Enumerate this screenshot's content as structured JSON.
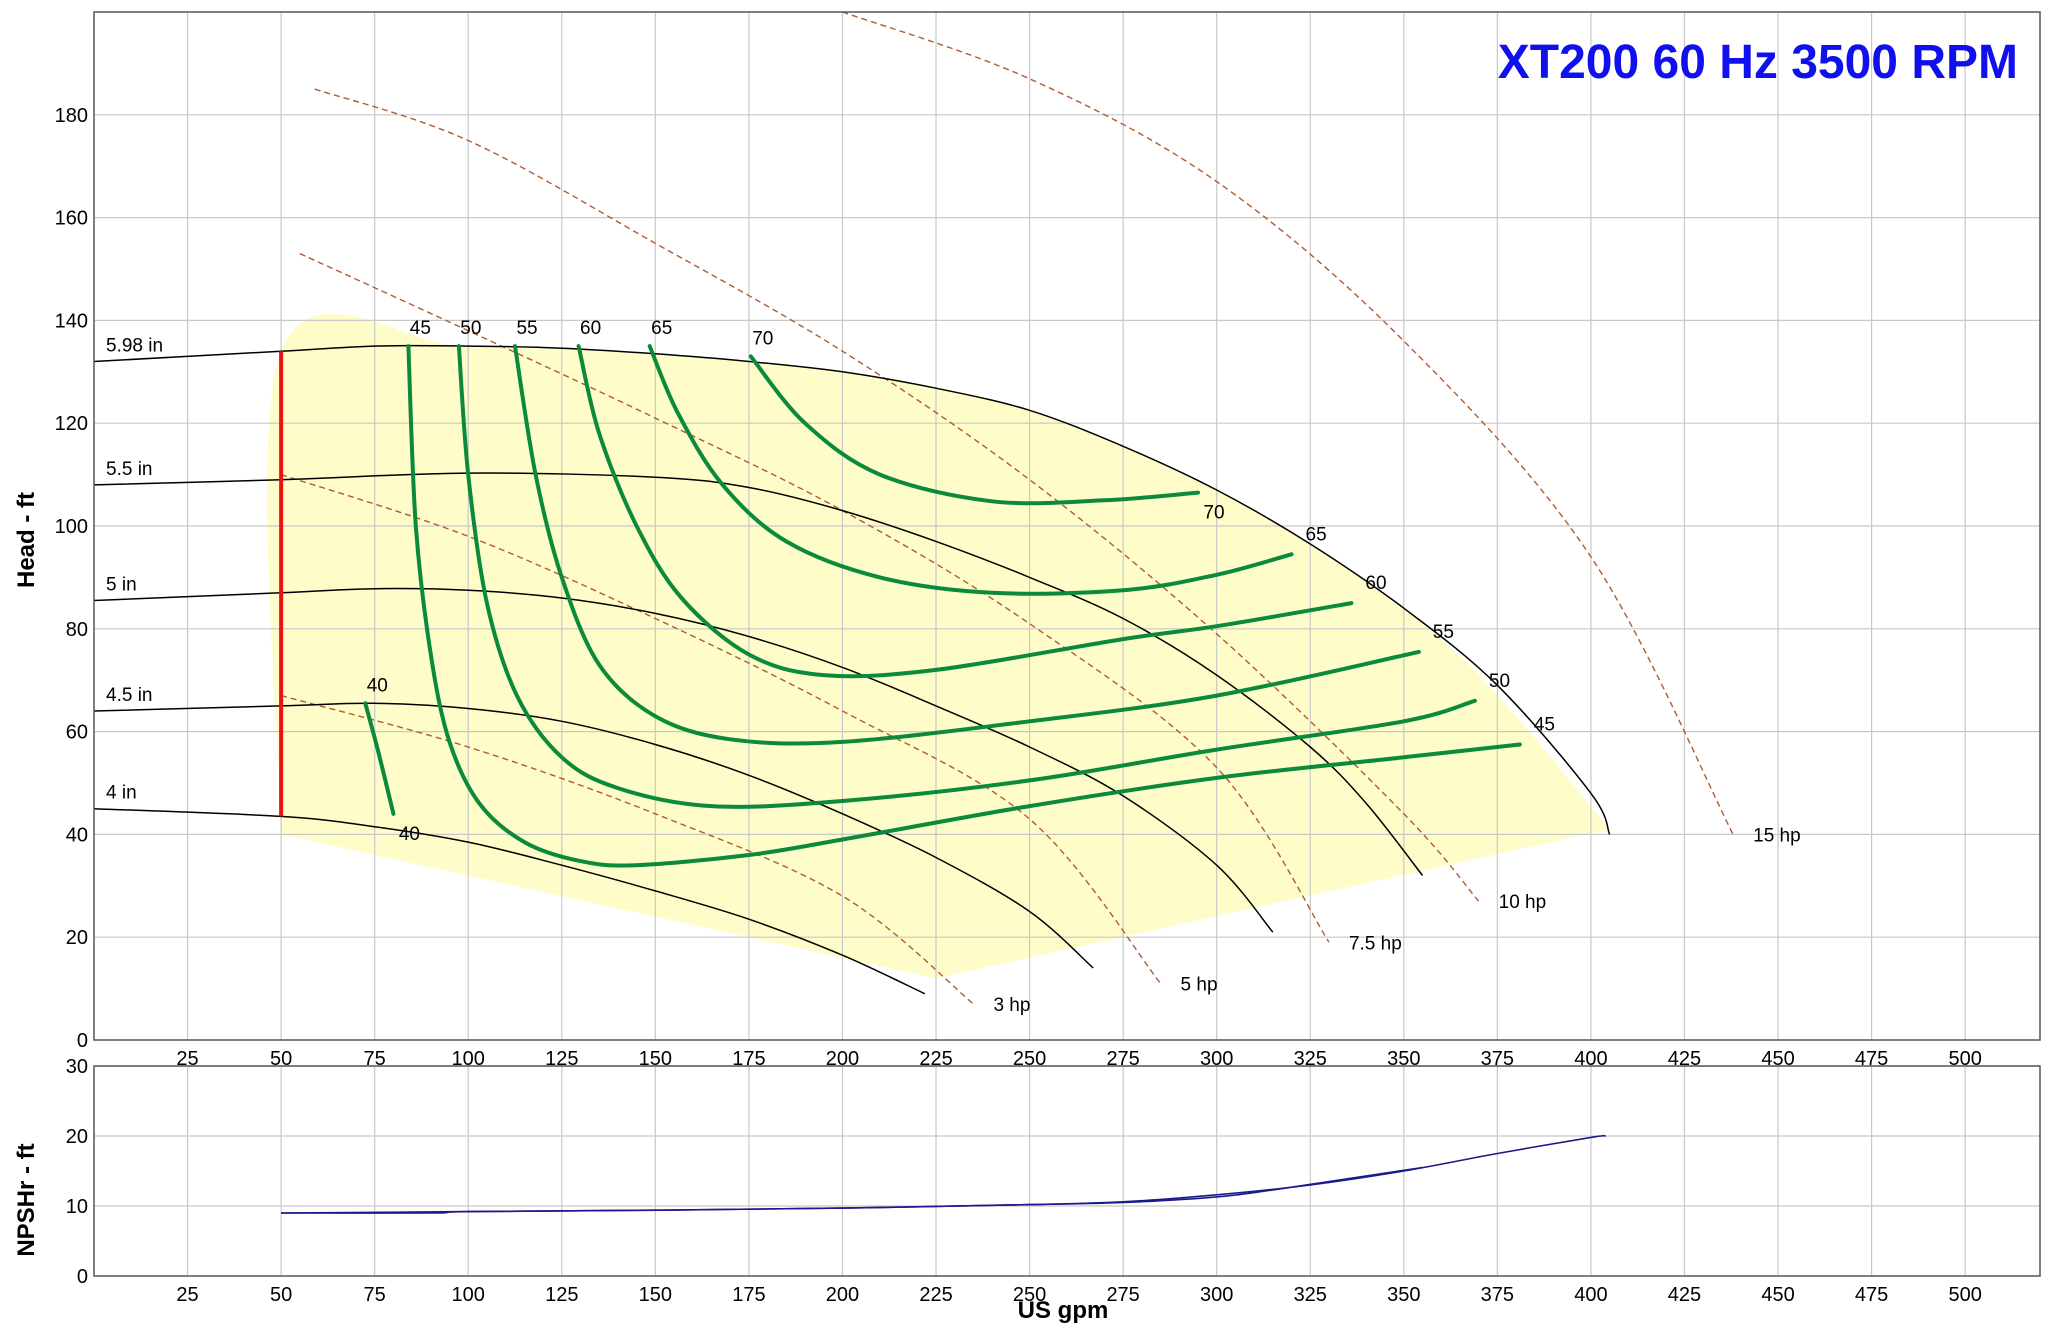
{
  "chart_data": [
    {
      "panel": "head",
      "type": "line",
      "title": "XT200 60 Hz 3500 RPM",
      "title_color": "#1010ee",
      "ylabel": "Head - ft",
      "xlim": [
        0,
        520
      ],
      "ylim": [
        0,
        200
      ],
      "x_ticks": [
        25,
        50,
        75,
        100,
        125,
        150,
        175,
        200,
        225,
        250,
        275,
        300,
        325,
        350,
        375,
        400,
        425,
        450,
        475,
        500
      ],
      "y_ticks": [
        0,
        20,
        40,
        60,
        80,
        100,
        120,
        140,
        160,
        180
      ],
      "grid": true,
      "colors": {
        "impeller": "#000000",
        "efficiency": "#0a8a3a",
        "power": "#b05c32",
        "min_flow": "#ee1111",
        "region_fill": "#fefcc8",
        "grid": "#c8c8c8"
      },
      "operating_region": [
        [
          50,
          40
        ],
        [
          50,
          134
        ],
        [
          100,
          134.8
        ],
        [
          150,
          133.5
        ],
        [
          200,
          130
        ],
        [
          250,
          122.5
        ],
        [
          300,
          107
        ],
        [
          330,
          94
        ],
        [
          360,
          78
        ],
        [
          380,
          63
        ],
        [
          405,
          41
        ],
        [
          225,
          12
        ],
        [
          50,
          40
        ]
      ],
      "min_flow_line": {
        "x": 50,
        "y": [
          43.5,
          134
        ]
      },
      "impeller_curves": [
        {
          "label": "5.98 in",
          "points": [
            [
              0,
              132
            ],
            [
              50,
              134
            ],
            [
              75,
              135
            ],
            [
              100,
              135
            ],
            [
              125,
              134.6
            ],
            [
              150,
              133.5
            ],
            [
              175,
              132
            ],
            [
              200,
              130
            ],
            [
              225,
              126.8
            ],
            [
              250,
              122.5
            ],
            [
              275,
              115.5
            ],
            [
              300,
              107
            ],
            [
              325,
              96.5
            ],
            [
              350,
              84
            ],
            [
              375,
              69
            ],
            [
              400,
              48
            ],
            [
              405,
              40
            ]
          ]
        },
        {
          "label": "5.5 in",
          "points": [
            [
              0,
              108
            ],
            [
              50,
              109
            ],
            [
              100,
              110.3
            ],
            [
              150,
              109.5
            ],
            [
              175,
              107.5
            ],
            [
              200,
              103
            ],
            [
              225,
              97
            ],
            [
              250,
              90
            ],
            [
              275,
              82
            ],
            [
              300,
              71
            ],
            [
              325,
              57
            ],
            [
              340,
              46
            ],
            [
              355,
              32
            ]
          ]
        },
        {
          "label": "5 in",
          "points": [
            [
              0,
              85.5
            ],
            [
              50,
              87
            ],
            [
              75,
              87.8
            ],
            [
              100,
              87.5
            ],
            [
              125,
              86
            ],
            [
              150,
              83
            ],
            [
              175,
              78.5
            ],
            [
              200,
              72.5
            ],
            [
              225,
              65
            ],
            [
              250,
              57
            ],
            [
              275,
              47.5
            ],
            [
              300,
              34
            ],
            [
              315,
              21
            ]
          ]
        },
        {
          "label": "4.5 in",
          "points": [
            [
              0,
              64
            ],
            [
              50,
              65
            ],
            [
              75,
              65.5
            ],
            [
              100,
              64.5
            ],
            [
              125,
              62
            ],
            [
              150,
              57.5
            ],
            [
              175,
              51.5
            ],
            [
              200,
              44
            ],
            [
              225,
              35.5
            ],
            [
              250,
              25
            ],
            [
              267,
              14
            ]
          ]
        },
        {
          "label": "4 in",
          "points": [
            [
              0,
              45
            ],
            [
              50,
              43.5
            ],
            [
              75,
              41.5
            ],
            [
              100,
              38.5
            ],
            [
              125,
              34
            ],
            [
              150,
              29
            ],
            [
              175,
              23.5
            ],
            [
              200,
              16.5
            ],
            [
              222,
              9
            ]
          ]
        }
      ],
      "efficiency_curves": [
        {
          "label_top": "40",
          "label_bottom": "40",
          "points": [
            [
              72.5,
              65.5
            ],
            [
              76,
              56
            ],
            [
              80,
              44
            ]
          ]
        },
        {
          "label_top": "45",
          "label_right": "45",
          "points": [
            [
              84,
              135
            ],
            [
              86,
              100
            ],
            [
              90,
              75
            ],
            [
              95,
              58
            ],
            [
              103,
              46
            ],
            [
              115,
              38.5
            ],
            [
              130,
              34.8
            ],
            [
              145,
              34
            ],
            [
              175,
              36
            ],
            [
              200,
              39
            ],
            [
              250,
              45.5
            ],
            [
              300,
              51
            ],
            [
              350,
              55
            ],
            [
              381,
              57.5
            ]
          ]
        },
        {
          "label_top": "50",
          "label_right": "50",
          "points": [
            [
              97.5,
              135
            ],
            [
              100,
              110
            ],
            [
              105,
              85
            ],
            [
              113,
              67
            ],
            [
              125,
              55
            ],
            [
              140,
              49
            ],
            [
              165,
              45.5
            ],
            [
              200,
              46.5
            ],
            [
              250,
              50.5
            ],
            [
              300,
              56.5
            ],
            [
              350,
              62
            ],
            [
              369,
              66
            ]
          ]
        },
        {
          "label_top": "55",
          "label_right": "55",
          "points": [
            [
              112.5,
              135
            ],
            [
              118,
              110
            ],
            [
              125,
              90
            ],
            [
              135,
              73
            ],
            [
              150,
              63
            ],
            [
              170,
              58.5
            ],
            [
              200,
              58
            ],
            [
              250,
              62
            ],
            [
              300,
              67
            ],
            [
              354,
              75.5
            ]
          ]
        },
        {
          "label_top": "60",
          "label_right": "60",
          "points": [
            [
              129.5,
              135
            ],
            [
              135,
              118
            ],
            [
              145,
              100
            ],
            [
              157,
              86
            ],
            [
              175,
              75
            ],
            [
              195,
              71
            ],
            [
              225,
              72
            ],
            [
              275,
              78
            ],
            [
              300,
              80.5
            ],
            [
              336,
              85
            ]
          ]
        },
        {
          "label_top": "65",
          "label_right": "65",
          "points": [
            [
              148.5,
              135
            ],
            [
              156,
              122
            ],
            [
              168,
              108
            ],
            [
              185,
              97
            ],
            [
              210,
              90
            ],
            [
              240,
              87
            ],
            [
              275,
              87.5
            ],
            [
              300,
              90.5
            ],
            [
              320,
              94.5
            ]
          ]
        },
        {
          "label_top": "70",
          "label_bottom": "70",
          "points": [
            [
              175.5,
              133
            ],
            [
              190,
              120
            ],
            [
              210,
              110
            ],
            [
              240,
              104.8
            ],
            [
              270,
              105
            ],
            [
              295,
              106.5
            ]
          ]
        }
      ],
      "power_curves": [
        {
          "label": "3 hp",
          "points": [
            [
              50,
              67
            ],
            [
              100,
              57
            ],
            [
              150,
              44
            ],
            [
              200,
              28
            ],
            [
              235,
              7
            ]
          ]
        },
        {
          "label": "5 hp",
          "points": [
            [
              50,
              110
            ],
            [
              100,
              98
            ],
            [
              150,
              82
            ],
            [
              200,
              64
            ],
            [
              250,
              43
            ],
            [
              285,
              11
            ]
          ]
        },
        {
          "label": "7.5 hp",
          "points": [
            [
              55,
              153
            ],
            [
              100,
              138
            ],
            [
              150,
              121
            ],
            [
              200,
              103
            ],
            [
              250,
              81
            ],
            [
              300,
              53
            ],
            [
              330,
              19
            ]
          ]
        },
        {
          "label": "10 hp",
          "points": [
            [
              59,
              185
            ],
            [
              100,
              175
            ],
            [
              150,
              155
            ],
            [
              200,
              134
            ],
            [
              250,
              109
            ],
            [
              300,
              79
            ],
            [
              350,
              44
            ],
            [
              370,
              27
            ]
          ]
        },
        {
          "label": "15 hp",
          "points": [
            [
              200,
              200
            ],
            [
              250,
              187
            ],
            [
              300,
              167
            ],
            [
              350,
              136
            ],
            [
              400,
              94
            ],
            [
              438,
              40
            ]
          ]
        }
      ]
    },
    {
      "panel": "npshr",
      "type": "line",
      "xlabel": "US gpm",
      "ylabel": "NPSHr - ft",
      "xlim": [
        0,
        520
      ],
      "ylim": [
        0,
        30
      ],
      "x_ticks": [
        25,
        50,
        75,
        100,
        125,
        150,
        175,
        200,
        225,
        250,
        275,
        300,
        325,
        350,
        375,
        400,
        425,
        450,
        475,
        500
      ],
      "y_ticks": [
        0,
        10,
        20,
        30
      ],
      "grid": true,
      "colors": {
        "npshr": "#1a1a8c"
      },
      "series": [
        {
          "points": [
            [
              50,
              9
            ],
            [
              90,
              9
            ],
            [
              100,
              9.2
            ],
            [
              150,
              9.4
            ],
            [
              200,
              9.7
            ],
            [
              250,
              10.2
            ],
            [
              275,
              10.6
            ],
            [
              300,
              11.6
            ],
            [
              325,
              13
            ],
            [
              350,
              15
            ],
            [
              375,
              17.5
            ],
            [
              400,
              19.8
            ],
            [
              404,
              20
            ]
          ]
        },
        {
          "points": [
            [
              50,
              9
            ],
            [
              100,
              9.2
            ],
            [
              150,
              9.4
            ],
            [
              200,
              9.7
            ],
            [
              250,
              10.2
            ],
            [
              275,
              10.5
            ],
            [
              300,
              11.3
            ],
            [
              315,
              12.3
            ],
            [
              330,
              13.5
            ],
            [
              355,
              15.5
            ]
          ]
        }
      ]
    }
  ]
}
